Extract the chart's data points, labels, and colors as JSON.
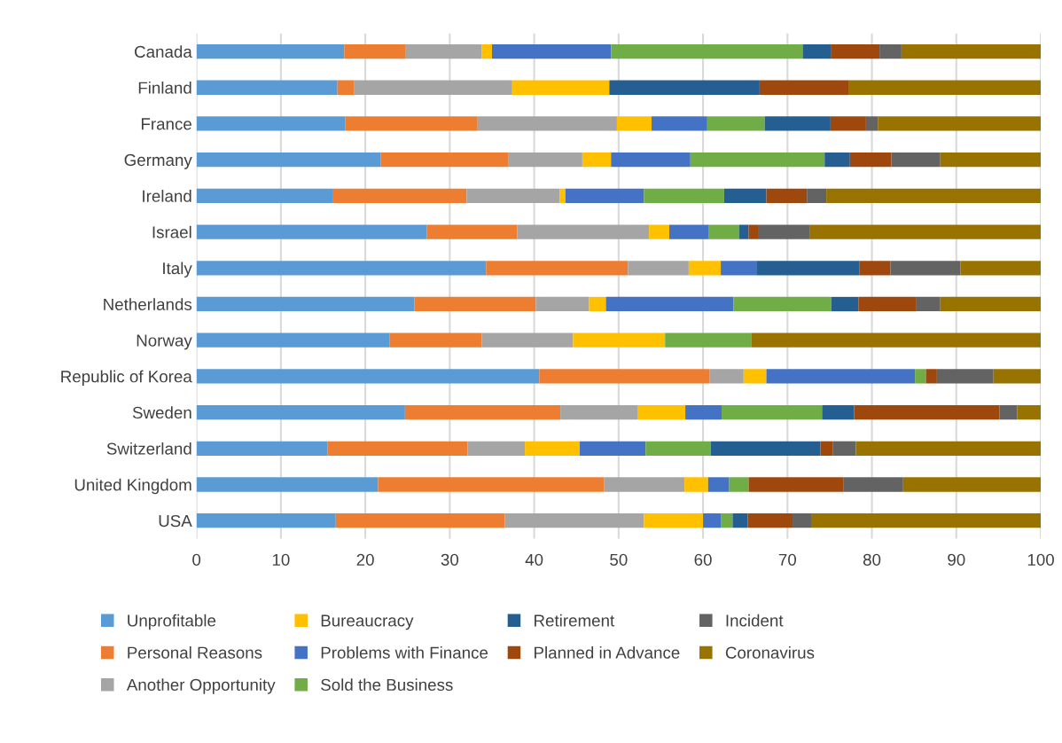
{
  "chart_data": {
    "type": "bar",
    "orientation": "horizontal",
    "stacked": true,
    "grid": "x",
    "legend": "bottom",
    "categories": [
      "Canada",
      "Finland",
      "France",
      "Germany",
      "Ireland",
      "Israel",
      "Italy",
      "Netherlands",
      "Norway",
      "Republic of Korea",
      "Sweden",
      "Switzerland",
      "United Kingdom",
      "USA"
    ],
    "xlim": [
      0,
      100
    ],
    "xticks": [
      0,
      10,
      20,
      30,
      40,
      50,
      60,
      70,
      80,
      90,
      100
    ],
    "series": [
      {
        "name": "Unprofitable",
        "color": "#5b9bd5",
        "values": [
          17.5,
          16.7,
          17.6,
          21.8,
          16.2,
          27.3,
          34.3,
          25.8,
          22.9,
          40.6,
          24.7,
          15.5,
          21.5,
          16.5
        ]
      },
      {
        "name": "Personal Reasons",
        "color": "#ed7d31",
        "values": [
          7.3,
          2.0,
          15.7,
          15.1,
          15.8,
          10.7,
          16.8,
          14.4,
          10.9,
          20.2,
          18.4,
          16.6,
          26.8,
          20.0
        ]
      },
      {
        "name": "Another Opportunity",
        "color": "#a5a5a5",
        "values": [
          9.0,
          18.7,
          16.5,
          8.8,
          11.0,
          15.6,
          7.2,
          6.3,
          10.8,
          4.0,
          9.2,
          6.8,
          9.5,
          16.5
        ]
      },
      {
        "name": "Bureaucracy",
        "color": "#ffc000",
        "values": [
          1.2,
          11.5,
          4.1,
          3.4,
          0.7,
          2.4,
          3.8,
          2.0,
          10.9,
          2.7,
          5.6,
          6.5,
          2.8,
          7.0
        ]
      },
      {
        "name": "Problems with Finance",
        "color": "#4472c4",
        "values": [
          14.1,
          0,
          6.6,
          9.4,
          9.3,
          4.7,
          4.3,
          15.1,
          0,
          17.6,
          4.3,
          7.8,
          2.5,
          2.1
        ]
      },
      {
        "name": "Sold the Business",
        "color": "#70ad47",
        "values": [
          22.7,
          0,
          6.8,
          15.9,
          9.5,
          3.6,
          0,
          11.6,
          10.2,
          1.3,
          11.9,
          7.7,
          2.3,
          1.4
        ]
      },
      {
        "name": "Retirement",
        "color": "#255e91",
        "values": [
          3.4,
          17.8,
          7.8,
          3.0,
          5.0,
          1.1,
          12.1,
          3.2,
          0,
          0,
          3.8,
          13.0,
          0,
          1.8
        ]
      },
      {
        "name": "Planned in Advance",
        "color": "#9e480e",
        "values": [
          5.7,
          10.6,
          4.2,
          4.9,
          4.8,
          1.2,
          3.7,
          6.8,
          0,
          1.3,
          17.2,
          1.5,
          11.2,
          5.3
        ]
      },
      {
        "name": "Incident",
        "color": "#636363",
        "values": [
          2.6,
          0,
          1.4,
          5.8,
          2.3,
          6.0,
          8.3,
          2.9,
          0,
          6.7,
          2.1,
          2.7,
          7.1,
          2.2
        ]
      },
      {
        "name": "Coronavirus",
        "color": "#997300",
        "values": [
          16.5,
          22.7,
          19.3,
          11.9,
          25.4,
          27.4,
          9.5,
          11.9,
          34.3,
          5.6,
          2.8,
          21.9,
          16.3,
          27.2
        ]
      }
    ]
  }
}
